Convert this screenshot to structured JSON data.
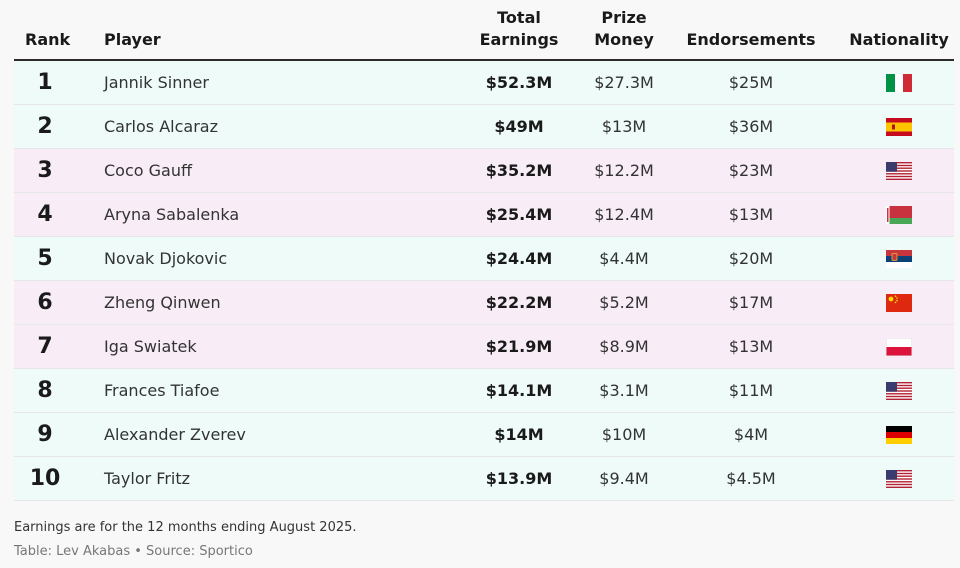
{
  "table": {
    "headers": {
      "rank": "Rank",
      "player": "Player",
      "total_l1": "Total",
      "total_l2": "Earnings",
      "prize_l1": "Prize",
      "prize_l2": "Money",
      "endorsements": "Endorsements",
      "nationality": "Nationality"
    },
    "rows": [
      {
        "rank": "1",
        "player": "Jannik Sinner",
        "total": "$52.3M",
        "prize": "$27.3M",
        "endorse": "$25M",
        "flag": "italy-flag-icon",
        "bg": "#eefbf8"
      },
      {
        "rank": "2",
        "player": "Carlos Alcaraz",
        "total": "$49M",
        "prize": "$13M",
        "endorse": "$36M",
        "flag": "spain-flag-icon",
        "bg": "#eefbf8"
      },
      {
        "rank": "3",
        "player": "Coco Gauff",
        "total": "$35.2M",
        "prize": "$12.2M",
        "endorse": "$23M",
        "flag": "usa-flag-icon",
        "bg": "#f8ecf7"
      },
      {
        "rank": "4",
        "player": "Aryna Sabalenka",
        "total": "$25.4M",
        "prize": "$12.4M",
        "endorse": "$13M",
        "flag": "belarus-flag-icon",
        "bg": "#f8ecf7"
      },
      {
        "rank": "5",
        "player": "Novak Djokovic",
        "total": "$24.4M",
        "prize": "$4.4M",
        "endorse": "$20M",
        "flag": "serbia-flag-icon",
        "bg": "#eefbf8"
      },
      {
        "rank": "6",
        "player": "Zheng Qinwen",
        "total": "$22.2M",
        "prize": "$5.2M",
        "endorse": "$17M",
        "flag": "china-flag-icon",
        "bg": "#f8ecf7"
      },
      {
        "rank": "7",
        "player": "Iga Swiatek",
        "total": "$21.9M",
        "prize": "$8.9M",
        "endorse": "$13M",
        "flag": "poland-flag-icon",
        "bg": "#f8ecf7"
      },
      {
        "rank": "8",
        "player": "Frances Tiafoe",
        "total": "$14.1M",
        "prize": "$3.1M",
        "endorse": "$11M",
        "flag": "usa-flag-icon",
        "bg": "#eefbf8"
      },
      {
        "rank": "9",
        "player": "Alexander Zverev",
        "total": "$14M",
        "prize": "$10M",
        "endorse": "$4M",
        "flag": "germany-flag-icon",
        "bg": "#eefbf8"
      },
      {
        "rank": "10",
        "player": "Taylor Fritz",
        "total": "$13.9M",
        "prize": "$9.4M",
        "endorse": "$4.5M",
        "flag": "usa-flag-icon",
        "bg": "#eefbf8"
      }
    ]
  },
  "chart_data": {
    "type": "table",
    "columns": [
      "Rank",
      "Player",
      "Total Earnings",
      "Prize Money",
      "Endorsements",
      "Nationality"
    ],
    "rows": [
      [
        "1",
        "Jannik Sinner",
        "$52.3M",
        "$27.3M",
        "$25M",
        "Italy"
      ],
      [
        "2",
        "Carlos Alcaraz",
        "$49M",
        "$13M",
        "$36M",
        "Spain"
      ],
      [
        "3",
        "Coco Gauff",
        "$35.2M",
        "$12.2M",
        "$23M",
        "United States"
      ],
      [
        "4",
        "Aryna Sabalenka",
        "$25.4M",
        "$12.4M",
        "$13M",
        "Belarus"
      ],
      [
        "5",
        "Novak Djokovic",
        "$24.4M",
        "$4.4M",
        "$20M",
        "Serbia"
      ],
      [
        "6",
        "Zheng Qinwen",
        "$22.2M",
        "$5.2M",
        "$17M",
        "China"
      ],
      [
        "7",
        "Iga Swiatek",
        "$21.9M",
        "$8.9M",
        "$13M",
        "Poland"
      ],
      [
        "8",
        "Frances Tiafoe",
        "$14.1M",
        "$3.1M",
        "$11M",
        "United States"
      ],
      [
        "9",
        "Alexander Zverev",
        "$14M",
        "$10M",
        "$4M",
        "Germany"
      ],
      [
        "10",
        "Taylor Fritz",
        "$13.9M",
        "$9.4M",
        "$4.5M",
        "United States"
      ]
    ]
  },
  "footer": {
    "note": "Earnings are for the 12 months ending August 2025.",
    "credit": "Table: Lev Akabas • Source: Sportico"
  }
}
